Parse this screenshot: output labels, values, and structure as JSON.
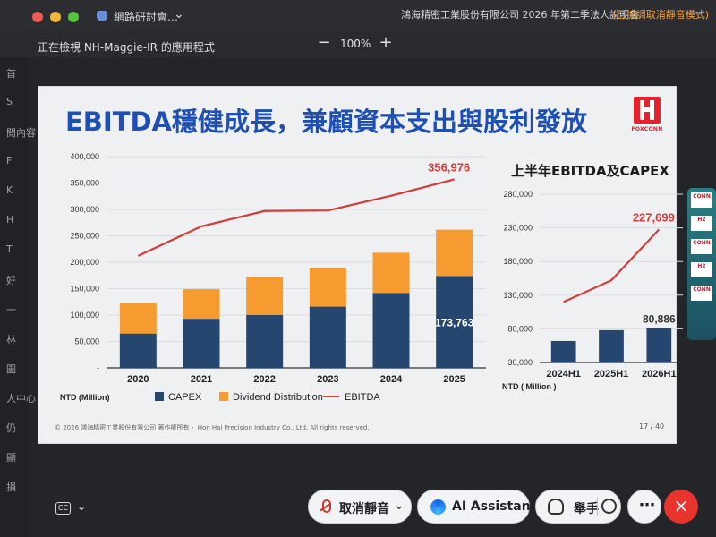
{
  "window": {
    "app_title": "網路研討會…",
    "meeting_title": "鴻海精密工業股份有限公司 2026 年第二季法人說明會",
    "status": "(已協調取消靜音模式)"
  },
  "viewbar": {
    "viewing_text": "正在檢視 NH-Maggie-IR 的應用程式",
    "zoom_out": "−",
    "zoom": "100%",
    "zoom_in": "+"
  },
  "left_strip": [
    "首",
    "S",
    "閱內容",
    "F",
    "K",
    "H",
    "T",
    "好",
    "一",
    "林",
    "圖",
    "人中心",
    "仍",
    "顯",
    "損"
  ],
  "slide": {
    "title": "EBITDA穩健成長，兼顧資本支出與股利發放",
    "logo_text": "FOXCONN",
    "right_title": "上半年EBITDA及CAPEX",
    "footer": "© 2026 鴻海精密工業股份有限公司 著作權所有・ Hon Hai Precision Industry Co., Ltd. All rights reserved.",
    "page_number": "17 / 40"
  },
  "chart_data": [
    {
      "type": "bar",
      "categories": [
        "2020",
        "2021",
        "2022",
        "2023",
        "2024",
        "2025"
      ],
      "series": [
        {
          "name": "CAPEX",
          "values": [
            65000,
            93000,
            100000,
            116000,
            142000,
            173763
          ]
        },
        {
          "name": "Dividend Distribution",
          "values": [
            58000,
            56000,
            72000,
            74000,
            76000,
            88000
          ]
        },
        {
          "name": "EBITDA",
          "values": [
            212000,
            268000,
            297000,
            298000,
            326000,
            356976
          ]
        }
      ],
      "ylim": [
        0,
        400000
      ],
      "yticks": [
        "400,000",
        "350,000",
        "300,000",
        "250,000",
        "200,000",
        "150,000",
        "100,000",
        "50,000",
        "-"
      ],
      "ylabel": "NTD (Million)",
      "labels": [
        "356,976",
        "173,763"
      ],
      "legend": [
        "CAPEX",
        "Dividend Distribution",
        "EBITDA"
      ],
      "grid": true,
      "legend_position": "bottom",
      "colors": {
        "capex": "#25466f",
        "dividend": "#f69b2f",
        "ebitda": "#d43c3a",
        "axis": "#333333"
      }
    },
    {
      "type": "bar",
      "categories": [
        "2024H1",
        "2025H1",
        "2026H1"
      ],
      "series": [
        {
          "name": "CAPEX",
          "values": [
            62000,
            78000,
            80886
          ]
        },
        {
          "name": "EBITDA",
          "values": [
            120000,
            152000,
            227699
          ]
        }
      ],
      "ylim": [
        30000,
        280000
      ],
      "yticks": [
        "280,000",
        "230,000",
        "180,000",
        "130,000",
        "80,000",
        "30,000"
      ],
      "ylabel": "NTD ( Million )",
      "labels": [
        "227,699",
        "80,886"
      ],
      "grid": true,
      "colors": {
        "capex": "#25466f",
        "ebitda": "#d43c3a",
        "axis": "#333333"
      }
    }
  ],
  "bottom_bar": {
    "captions_label": "CC",
    "captions_chevron": "⌄",
    "unmute": "取消靜音",
    "unmute_chevron": "⌄",
    "ai_assistant": "AI Assistant",
    "raise_hand": "舉手",
    "more": "⋯",
    "hangup": "×"
  },
  "side_thumbnail": [
    "CONN",
    "H2",
    "CONN",
    "H2",
    "CONN"
  ]
}
